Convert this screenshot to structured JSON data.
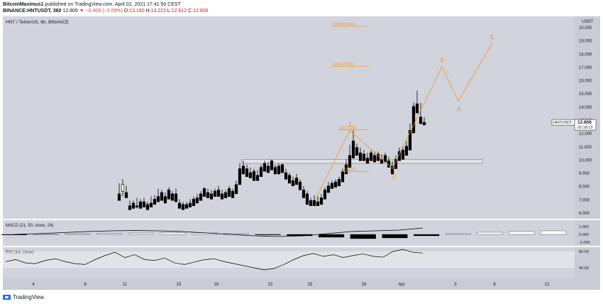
{
  "header": {
    "author": "BitcoinMaximus1",
    "published": " published on TradingView.com, April 02, 2021 17:41:50 CEST",
    "symbol": "BINANCE:HNTUSDT, 360",
    "last": "12.806",
    "change": "▼ −0.409 (−3.09%)",
    "ohlc_o_label": "O:",
    "ohlc_o": "13.160",
    "ohlc_h_label": "H:",
    "ohlc_h": "13.222",
    "ohlc_l_label": "L:",
    "ohlc_l": "12.612",
    "ohlc_c_label": "C:",
    "ohlc_c": "12.806"
  },
  "footer": {
    "logo_text": "TradingView"
  },
  "colors": {
    "pane_bg": "#d1d4dc",
    "candle": "#000000",
    "candle_up_fill": "#ffffff",
    "wave": "#f7931a",
    "fib": "#f7931a",
    "zone": "#e6e7ec",
    "macd": "#000000",
    "hist_pos": "#ffffff",
    "hist_neg": "#000000"
  },
  "chart_data": {
    "type": "candlestick",
    "title": "HNT / TetherUS, 6h, BINANCE",
    "price_axis_unit": "USDT",
    "y_ticks": [
      6.0,
      7.0,
      8.0,
      9.0,
      10.0,
      11.0,
      12.0,
      13.0,
      14.0,
      15.0,
      16.0,
      17.0,
      18.0,
      19.0,
      20.0
    ],
    "y_tick_labels": [
      "6.000",
      "7.000",
      "8.000",
      "9.000",
      "10.000",
      "11.000",
      "12.000",
      "13.000",
      "14.000",
      "15.000",
      "16.000",
      "17.000",
      "18.000",
      "19.000",
      "20.000"
    ],
    "x_tick_labels": [
      "4",
      "8",
      "11",
      "15",
      "18",
      "22",
      "25",
      "29",
      "Apr",
      "5",
      "8",
      "12"
    ],
    "current_price_label": "HNTUSDT",
    "current_price": "12.806",
    "countdown": "02:18:13",
    "candles": [
      [
        7.4,
        8.2,
        7.1,
        6.9
      ],
      [
        7.6,
        8.5,
        7.2,
        8.1
      ],
      [
        7.5,
        8.0,
        7.3,
        7.1
      ],
      [
        6.5,
        6.9,
        6.3,
        6.2
      ],
      [
        6.7,
        6.9,
        6.4,
        6.3
      ],
      [
        6.5,
        7.1,
        6.3,
        6.4
      ],
      [
        6.8,
        7.0,
        6.4,
        6.3
      ],
      [
        6.8,
        7.1,
        6.5,
        6.4
      ],
      [
        6.6,
        6.8,
        6.3,
        6.2
      ],
      [
        6.7,
        7.2,
        6.5,
        6.4
      ],
      [
        7.0,
        7.3,
        6.7,
        6.6
      ],
      [
        7.2,
        7.8,
        6.9,
        6.8
      ],
      [
        7.5,
        7.7,
        7.0,
        6.9
      ],
      [
        7.2,
        7.5,
        6.8,
        6.7
      ],
      [
        7.7,
        7.9,
        7.1,
        7.0
      ],
      [
        7.4,
        7.6,
        7.0,
        6.9
      ],
      [
        7.4,
        7.8,
        7.0,
        6.8
      ],
      [
        6.7,
        7.0,
        6.4,
        6.3
      ],
      [
        6.6,
        6.8,
        6.3,
        6.2
      ],
      [
        6.6,
        6.8,
        6.4,
        6.3
      ],
      [
        6.7,
        7.0,
        6.5,
        6.4
      ],
      [
        7.0,
        7.2,
        6.6,
        6.5
      ],
      [
        7.1,
        7.4,
        6.8,
        6.7
      ],
      [
        7.4,
        7.6,
        7.0,
        6.9
      ],
      [
        7.8,
        7.9,
        7.3,
        7.2
      ],
      [
        7.5,
        7.8,
        7.2,
        7.1
      ],
      [
        7.4,
        7.7,
        7.1,
        7.0
      ],
      [
        7.6,
        7.8,
        7.3,
        7.2
      ],
      [
        7.7,
        8.0,
        7.3,
        7.2
      ],
      [
        7.4,
        7.7,
        7.1,
        7.0
      ],
      [
        7.5,
        7.7,
        7.2,
        7.1
      ],
      [
        7.8,
        8.0,
        7.3,
        7.2
      ],
      [
        7.6,
        7.8,
        7.2,
        7.1
      ],
      [
        8.1,
        8.4,
        7.5,
        7.4
      ],
      [
        9.3,
        9.7,
        8.2,
        8.1
      ],
      [
        9.5,
        9.9,
        9.0,
        8.9
      ],
      [
        9.3,
        9.6,
        8.8,
        8.7
      ],
      [
        9.0,
        9.4,
        8.7,
        8.6
      ],
      [
        9.1,
        9.3,
        8.5,
        8.4
      ],
      [
        8.8,
        9.2,
        8.5,
        8.4
      ],
      [
        9.4,
        9.6,
        8.8,
        8.7
      ],
      [
        9.7,
        9.9,
        9.2,
        9.1
      ],
      [
        9.5,
        9.8,
        9.2,
        9.0
      ],
      [
        9.9,
        10.0,
        9.3,
        9.2
      ],
      [
        9.4,
        9.6,
        9.0,
        8.9
      ],
      [
        9.5,
        9.7,
        9.0,
        8.9
      ],
      [
        9.6,
        9.7,
        9.1,
        9.0
      ],
      [
        9.0,
        9.3,
        8.6,
        8.5
      ],
      [
        8.8,
        9.0,
        8.3,
        8.2
      ],
      [
        8.4,
        8.7,
        8.1,
        8.0
      ],
      [
        8.6,
        8.9,
        8.2,
        8.1
      ],
      [
        8.3,
        8.5,
        7.8,
        7.7
      ],
      [
        7.7,
        8.0,
        7.2,
        7.1
      ],
      [
        7.4,
        7.6,
        6.8,
        6.6
      ],
      [
        6.9,
        7.1,
        6.6,
        6.5
      ],
      [
        6.9,
        7.3,
        6.6,
        6.5
      ],
      [
        6.8,
        7.2,
        6.6,
        6.5
      ],
      [
        7.1,
        7.4,
        6.7,
        6.6
      ],
      [
        7.7,
        7.9,
        7.1,
        7.0
      ],
      [
        8.0,
        8.3,
        7.6,
        7.5
      ],
      [
        8.2,
        8.4,
        7.9,
        7.8
      ],
      [
        8.3,
        8.5,
        8.0,
        7.9
      ],
      [
        8.5,
        8.7,
        8.1,
        8.0
      ],
      [
        9.1,
        9.3,
        8.4,
        8.3
      ],
      [
        9.6,
        10.0,
        9.0,
        8.9
      ],
      [
        10.3,
        11.1,
        9.5,
        9.4
      ],
      [
        11.4,
        12.2,
        10.2,
        10.1
      ],
      [
        10.9,
        11.2,
        10.4,
        10.3
      ],
      [
        10.5,
        10.9,
        10.0,
        9.9
      ],
      [
        10.4,
        10.7,
        10.0,
        9.9
      ],
      [
        10.1,
        10.5,
        9.8,
        9.7
      ],
      [
        10.5,
        10.7,
        10.0,
        9.9
      ],
      [
        10.3,
        10.6,
        9.9,
        9.8
      ],
      [
        10.4,
        10.6,
        10.0,
        9.9
      ],
      [
        10.0,
        10.4,
        9.8,
        9.7
      ],
      [
        10.3,
        10.5,
        9.9,
        9.8
      ],
      [
        9.9,
        10.2,
        9.5,
        9.4
      ],
      [
        9.5,
        9.9,
        9.0,
        8.9
      ],
      [
        10.0,
        10.3,
        9.4,
        9.3
      ],
      [
        10.6,
        10.9,
        10.0,
        9.9
      ],
      [
        10.7,
        11.0,
        10.1,
        10.0
      ],
      [
        11.0,
        11.4,
        10.4,
        10.3
      ],
      [
        12.2,
        12.7,
        10.8,
        10.7
      ],
      [
        14.0,
        14.3,
        12.1,
        12.0
      ],
      [
        14.2,
        15.2,
        13.6,
        13.5
      ],
      [
        13.2,
        14.3,
        12.8,
        12.7
      ],
      [
        12.8,
        13.2,
        12.6,
        12.6
      ]
    ],
    "resistance_zone": {
      "low": 9.7,
      "high": 10.0
    },
    "fib_levels": [
      {
        "label": "1(9.097)",
        "value": 9.097
      },
      {
        "label": "1(12.235)",
        "value": 12.235
      },
      {
        "label": "2.61(17.026)",
        "value": 17.026
      },
      {
        "label": "3.61(20.064)",
        "value": 20.064
      }
    ],
    "wave_labels": [
      "1",
      "2",
      "3",
      "4",
      "5"
    ],
    "wave_path": [
      {
        "date": "Mar 26 18:00",
        "price": 7.0
      },
      {
        "date": "Mar 28 06:00",
        "price": 12.2
      },
      {
        "date": "Mar 31 12:00",
        "price": 9.3
      },
      {
        "date": "Apr 03 18:00",
        "price": 17.0
      },
      {
        "date": "Apr 05 18:00",
        "price": 14.4
      },
      {
        "date": "Apr 07 12:00",
        "price": 18.8
      }
    ],
    "macd": {
      "label": "MACD (21, 50, close, 24)",
      "y_ticks": [
        "1.000",
        "0.000",
        "-1.000"
      ],
      "line": [
        0.0,
        0.1,
        0.25,
        0.4,
        0.5,
        0.55,
        0.5,
        0.4,
        0.2,
        0.0,
        -0.2,
        -0.3,
        -0.2,
        0.1,
        0.4,
        0.5,
        0.6,
        0.9
      ],
      "histogram": [
        -0.05,
        0.05,
        0.1,
        0.15,
        0.2,
        0.25,
        0.2,
        0.1,
        -0.05,
        -0.2,
        -0.4,
        -0.6,
        -0.5,
        -0.2,
        0.1,
        0.3,
        0.4,
        0.5
      ]
    },
    "rsi": {
      "label": "RSI (14, close)",
      "y_ticks": [
        "80.00",
        "40.00"
      ],
      "values": [
        55,
        60,
        52,
        50,
        58,
        62,
        55,
        50,
        48,
        60,
        70,
        78,
        65,
        72,
        60,
        58,
        64,
        52,
        48,
        54,
        60,
        62,
        55,
        50,
        45,
        40,
        35,
        38,
        48,
        60,
        70,
        75,
        68,
        72,
        65,
        70,
        74,
        68,
        66,
        80,
        85,
        78,
        76
      ]
    }
  }
}
